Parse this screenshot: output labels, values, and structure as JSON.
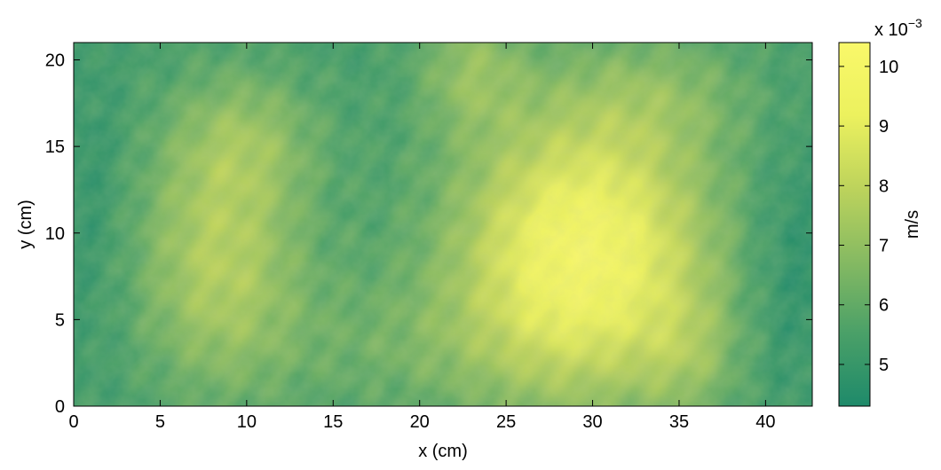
{
  "chart_data": {
    "type": "heatmap",
    "title": "",
    "xlabel": "x (cm)",
    "ylabel": "y (cm)",
    "xlim": [
      0,
      42.7
    ],
    "ylim": [
      0,
      21
    ],
    "x_ticks": [
      0,
      5,
      10,
      15,
      20,
      25,
      30,
      35,
      40
    ],
    "y_ticks": [
      0,
      5,
      10,
      15,
      20
    ],
    "grid": false,
    "colorbar": {
      "label": "m/s",
      "multiplier_label": "x 10",
      "multiplier_exponent": "−3",
      "range": [
        4.3,
        10.4
      ],
      "ticks": [
        5,
        6,
        7,
        8,
        9,
        10
      ],
      "colors": [
        "#1e8a6a",
        "#4aa068",
        "#86ba62",
        "#bdd35c",
        "#ecf15e",
        "#f9f86a"
      ]
    },
    "field": {
      "units": "m/s (×10^-3)",
      "base_value": 5.2,
      "blobs": [
        {
          "cx": 29.5,
          "cy": 8.8,
          "sx": 5.2,
          "sy": 5.8,
          "amp": 4.9
        },
        {
          "cx": 8.5,
          "cy": 8.5,
          "sx": 3.4,
          "sy": 5.2,
          "amp": 2.5
        },
        {
          "cx": 10.0,
          "cy": 15.5,
          "sx": 3.0,
          "sy": 2.8,
          "amp": 1.3
        },
        {
          "cx": 23.0,
          "cy": 19.5,
          "sx": 2.2,
          "sy": 2.5,
          "amp": 1.5
        },
        {
          "cx": 34.0,
          "cy": 18.0,
          "sx": 4.0,
          "sy": 2.5,
          "amp": 1.0
        },
        {
          "cx": 19.0,
          "cy": 3.5,
          "sx": 6.0,
          "sy": 3.0,
          "amp": 0.8
        },
        {
          "cx": 35.5,
          "cy": 3.0,
          "sx": 2.0,
          "sy": 2.5,
          "amp": 1.0
        },
        {
          "cx": 41.5,
          "cy": 8.0,
          "sx": 2.0,
          "sy": 5.0,
          "amp": -0.8
        },
        {
          "cx": 1.0,
          "cy": 12.0,
          "sx": 1.5,
          "sy": 6.0,
          "amp": -0.5
        }
      ]
    }
  }
}
